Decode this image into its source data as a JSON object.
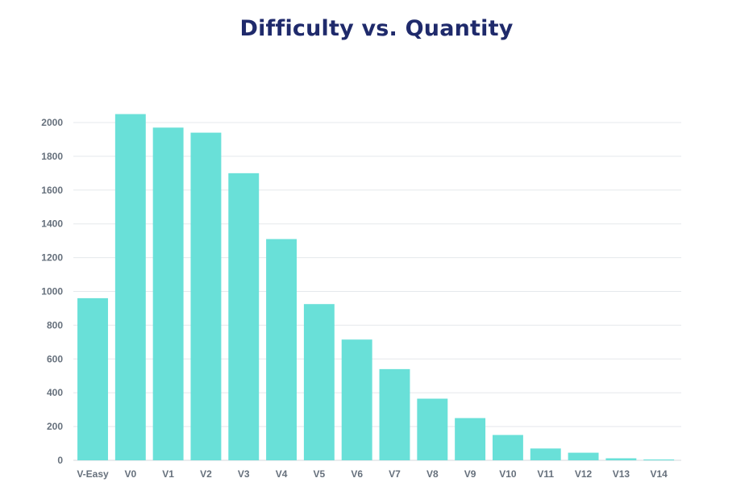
{
  "chart_data": {
    "type": "bar",
    "title": "Difficulty vs. Quantity",
    "xlabel": "",
    "ylabel": "",
    "categories": [
      "V-Easy",
      "V0",
      "V1",
      "V2",
      "V3",
      "V4",
      "V5",
      "V6",
      "V7",
      "V8",
      "V9",
      "V10",
      "V11",
      "V12",
      "V13",
      "V14"
    ],
    "values": [
      960,
      2050,
      1970,
      1940,
      1700,
      1310,
      925,
      715,
      540,
      365,
      250,
      150,
      70,
      45,
      12,
      5
    ],
    "ylim": [
      0,
      2000
    ],
    "yticks": [
      0,
      200,
      400,
      600,
      800,
      1000,
      1200,
      1400,
      1600,
      1800,
      2000
    ],
    "grid": true,
    "legend": "none",
    "colors": {
      "bar": "#69e0d8",
      "grid": "#e5e8ec",
      "tick_text": "#66707c",
      "title": "#1f2a6b"
    }
  }
}
